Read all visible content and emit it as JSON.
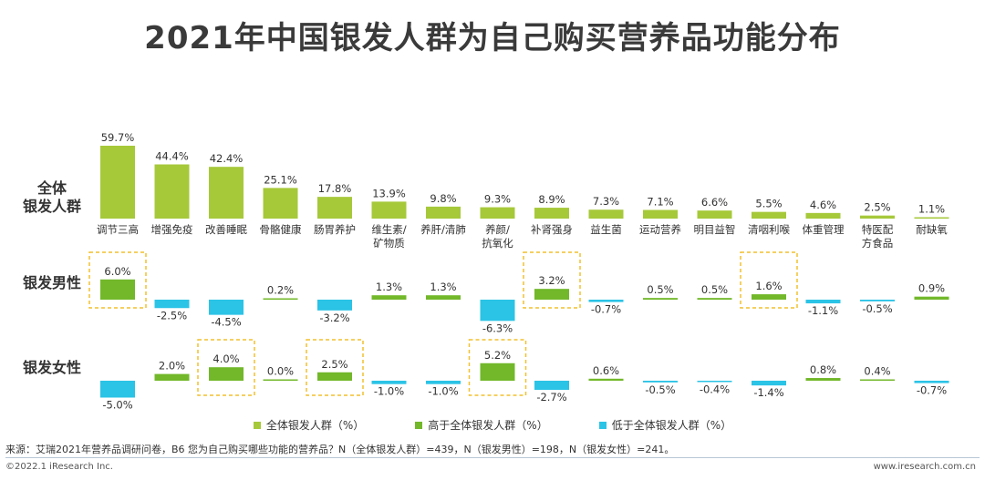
{
  "title": "2021年中国银发人群为自己购买营养品功能分布",
  "chart_data": {
    "type": "bar",
    "title": "2021年中国银发人群为自己购买营养品功能分布",
    "unit": "%",
    "categories": [
      [
        "调节三高"
      ],
      [
        "增强免疫"
      ],
      [
        "改善睡眠"
      ],
      [
        "骨骼健康"
      ],
      [
        "肠胃养护"
      ],
      [
        "维生素/",
        "矿物质"
      ],
      [
        "养肝/清肺"
      ],
      [
        "养颜/",
        "抗氧化"
      ],
      [
        "补肾强身"
      ],
      [
        "益生菌"
      ],
      [
        "运动营养"
      ],
      [
        "明目益智"
      ],
      [
        "清咽利喉"
      ],
      [
        "体重管理"
      ],
      [
        "特医配",
        "方食品"
      ],
      [
        "耐缺氧"
      ]
    ],
    "series": [
      {
        "name": "全体银发人群",
        "row_label": [
          "全体",
          "银发人群"
        ],
        "values": [
          59.7,
          44.4,
          42.4,
          25.1,
          17.8,
          13.9,
          9.8,
          9.3,
          8.9,
          7.3,
          7.1,
          6.6,
          5.5,
          4.6,
          2.5,
          1.1
        ],
        "labels": [
          "59.7%",
          "44.4%",
          "42.4%",
          "25.1%",
          "17.8%",
          "13.9%",
          "9.8%",
          "9.3%",
          "8.9%",
          "7.3%",
          "7.1%",
          "6.6%",
          "5.5%",
          "4.6%",
          "2.5%",
          "1.1%"
        ],
        "highlight": []
      },
      {
        "name": "银发男性",
        "row_label": [
          "银发男性"
        ],
        "values": [
          6.0,
          -2.5,
          -4.5,
          0.2,
          -3.2,
          1.3,
          1.3,
          -6.3,
          3.2,
          -0.7,
          0.5,
          0.5,
          1.6,
          -1.1,
          -0.5,
          0.9
        ],
        "labels": [
          "6.0%",
          "-2.5%",
          "-4.5%",
          "0.2%",
          "-3.2%",
          "1.3%",
          "1.3%",
          "-6.3%",
          "3.2%",
          "-0.7%",
          "0.5%",
          "0.5%",
          "1.6%",
          "-1.1%",
          "-0.5%",
          "0.9%"
        ],
        "highlight": [
          0,
          8,
          12
        ]
      },
      {
        "name": "银发女性",
        "row_label": [
          "银发女性"
        ],
        "values": [
          -5.0,
          2.0,
          4.0,
          0.0,
          2.5,
          -1.0,
          -1.0,
          5.2,
          -2.7,
          0.6,
          -0.5,
          -0.4,
          -1.4,
          0.8,
          0.4,
          -0.7
        ],
        "labels": [
          "-5.0%",
          "2.0%",
          "4.0%",
          "0.0%",
          "2.5%",
          "-1.0%",
          "-1.0%",
          "5.2%",
          "-2.7%",
          "0.6%",
          "-0.5%",
          "-0.4%",
          "-1.4%",
          "0.8%",
          "0.4%",
          "-0.7%"
        ],
        "highlight": [
          2,
          4,
          7
        ]
      }
    ],
    "legend": [
      {
        "label": "全体银发人群（%）",
        "color": "#a6c93a"
      },
      {
        "label": "高于全体银发人群（%）",
        "color": "#72b82a"
      },
      {
        "label": "低于全体银发人群（%）",
        "color": "#2bc3e6"
      }
    ]
  },
  "colors": {
    "base": "#a6c93a",
    "above": "#72b82a",
    "below": "#2bc3e6",
    "highlight_box": "#f2c12e"
  },
  "footer": {
    "source": "来源：艾瑞2021年营养品调研问卷，B6 您为自己购买哪些功能的营养品？N（全体银发人群）=439，N（银发男性）=198，N（银发女性）=241。",
    "copyright": "©2022.1 iResearch Inc.",
    "website": "www.iresearch.com.cn"
  }
}
